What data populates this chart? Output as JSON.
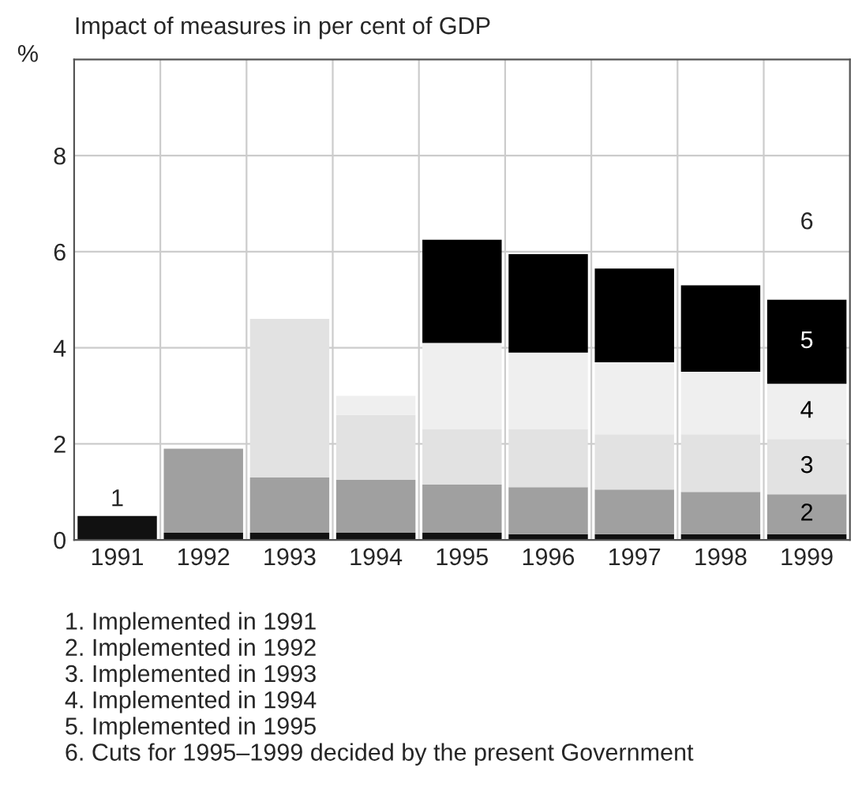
{
  "chart_data": {
    "type": "bar",
    "stacked": true,
    "title": "Impact of measures in per cent of GDP",
    "ylabel": "%",
    "categories": [
      "1991",
      "1992",
      "1993",
      "1994",
      "1995",
      "1996",
      "1997",
      "1998",
      "1999"
    ],
    "series": [
      {
        "name": "1",
        "color": "#111111",
        "values": [
          0.5,
          0.15,
          0.15,
          0.15,
          0.15,
          0.12,
          0.12,
          0.12,
          0.12
        ]
      },
      {
        "name": "2",
        "color": "#a0a0a0",
        "values": [
          null,
          1.75,
          1.15,
          1.1,
          1.0,
          0.98,
          0.93,
          0.88,
          0.83
        ]
      },
      {
        "name": "3",
        "color": "#e2e2e2",
        "values": [
          null,
          null,
          3.3,
          1.35,
          1.15,
          1.2,
          1.15,
          1.2,
          1.15
        ]
      },
      {
        "name": "4",
        "color": "#efefef",
        "values": [
          null,
          null,
          null,
          0.4,
          1.8,
          1.6,
          1.5,
          1.3,
          1.15
        ]
      },
      {
        "name": "5",
        "color": "#000000",
        "values": [
          null,
          null,
          null,
          null,
          2.15,
          2.05,
          1.95,
          1.8,
          1.75
        ]
      }
    ],
    "ylim": [
      0,
      10
    ],
    "yticks": [
      0,
      2,
      4,
      6,
      8
    ],
    "grid": true,
    "annotations": [
      "6",
      "1. Implemented in 1991",
      "2. Implemented in 1992",
      "3. Implemented in 1993",
      "4. Implemented in 1994",
      "5. Implemented in 1995",
      "6. Cuts for 1995–1999 decided by the present Government"
    ]
  }
}
